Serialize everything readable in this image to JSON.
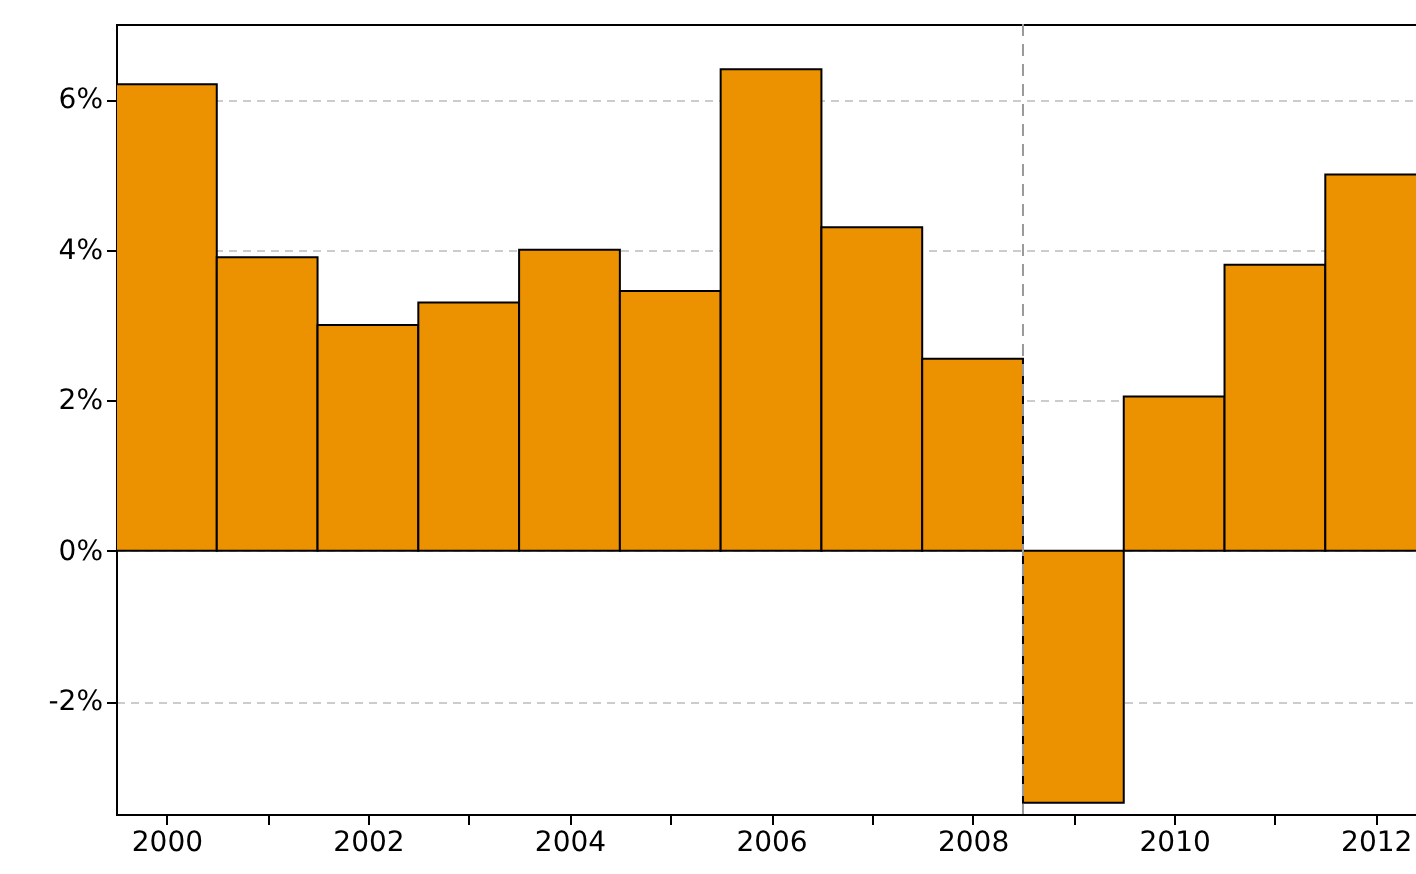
{
  "chart_data": {
    "type": "bar",
    "x": [
      2000,
      2001,
      2002,
      2003,
      2004,
      2005,
      2006,
      2007,
      2008,
      2009,
      2010,
      2011,
      2012
    ],
    "values": [
      6.2,
      3.9,
      3.0,
      3.3,
      4.0,
      3.45,
      6.4,
      4.3,
      2.55,
      -3.35,
      2.05,
      3.8,
      5.0
    ],
    "color": "#ec9200",
    "xlim": [
      1999.5,
      2012.4
    ],
    "xticks": [
      2000,
      {
        "value": 2001,
        "label": null
      },
      2002,
      {
        "value": 2003,
        "label": null
      },
      2004,
      {
        "value": 2005,
        "label": null
      },
      2006,
      {
        "value": 2007,
        "label": null
      },
      2008,
      {
        "value": 2009,
        "label": null
      },
      2010,
      {
        "value": 2011,
        "label": null
      },
      2012
    ],
    "ylim": [
      -3.5,
      7
    ],
    "yticks": [
      {
        "value": -2,
        "label": "-2%"
      },
      {
        "value": 0,
        "label": "0%"
      },
      {
        "value": 2,
        "label": "2%"
      },
      {
        "value": 4,
        "label": "4%"
      },
      {
        "value": 6,
        "label": "6%"
      }
    ],
    "grid": "y",
    "ref_lines": [
      {
        "axis": "x",
        "value": 2008.5,
        "color": "#999999",
        "line_style": "dashed"
      }
    ]
  }
}
